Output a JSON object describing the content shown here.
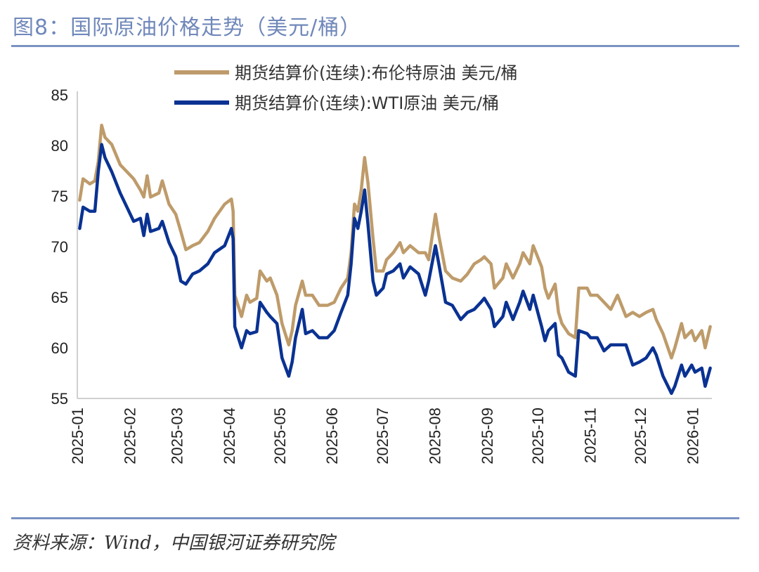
{
  "title": "图8：国际原油价格走势（美元/桶）",
  "source": "资料来源：Wind，中国银河证券研究院",
  "chart_data": {
    "type": "line",
    "title": "",
    "xlabel": "",
    "ylabel": "",
    "ylim": [
      55,
      85
    ],
    "yticks": [
      "55",
      "60",
      "65",
      "70",
      "75",
      "80",
      "85"
    ],
    "xticks": [
      "2025-01",
      "2025-02",
      "2025-03",
      "2025-04",
      "2025-05",
      "2025-06",
      "2025-07",
      "2025-08",
      "2025-09",
      "2025-10",
      "2025-11",
      "2025-12",
      "2026-01"
    ],
    "xlim": [
      "2025-01-01",
      "2026-01-12"
    ],
    "grid": false,
    "legend_placement": "top-center",
    "dates": [
      "2025-01-02",
      "2025-01-04",
      "2025-01-08",
      "2025-01-11",
      "2025-01-13",
      "2025-01-15",
      "2025-01-17",
      "2025-01-21",
      "2025-01-26",
      "2025-01-30",
      "2025-02-03",
      "2025-02-07",
      "2025-02-09",
      "2025-02-11",
      "2025-02-13",
      "2025-02-18",
      "2025-02-20",
      "2025-02-24",
      "2025-02-28",
      "2025-03-03",
      "2025-03-06",
      "2025-03-10",
      "2025-03-14",
      "2025-03-19",
      "2025-03-23",
      "2025-03-29",
      "2025-04-02",
      "2025-04-03",
      "2025-04-04",
      "2025-04-08",
      "2025-04-11",
      "2025-04-13",
      "2025-04-17",
      "2025-04-19",
      "2025-04-23",
      "2025-04-25",
      "2025-04-29",
      "2025-05-02",
      "2025-05-06",
      "2025-05-08",
      "2025-05-10",
      "2025-05-14",
      "2025-05-16",
      "2025-05-20",
      "2025-05-24",
      "2025-05-29",
      "2025-06-02",
      "2025-06-06",
      "2025-06-10",
      "2025-06-12",
      "2025-06-14",
      "2025-06-16",
      "2025-06-18",
      "2025-06-20",
      "2025-06-22",
      "2025-06-25",
      "2025-06-27",
      "2025-07-01",
      "2025-07-03",
      "2025-07-07",
      "2025-07-11",
      "2025-07-13",
      "2025-07-17",
      "2025-07-22",
      "2025-07-26",
      "2025-07-28",
      "2025-08-01",
      "2025-08-03",
      "2025-08-07",
      "2025-08-11",
      "2025-08-16",
      "2025-08-20",
      "2025-08-24",
      "2025-08-28",
      "2025-08-30",
      "2025-09-03",
      "2025-09-05",
      "2025-09-10",
      "2025-09-12",
      "2025-09-16",
      "2025-09-20",
      "2025-09-22",
      "2025-09-26",
      "2025-09-28",
      "2025-10-03",
      "2025-10-05",
      "2025-10-07",
      "2025-10-11",
      "2025-10-13",
      "2025-10-15",
      "2025-10-19",
      "2025-10-23",
      "2025-10-25",
      "2025-10-30",
      "2025-11-01",
      "2025-11-05",
      "2025-11-09",
      "2025-11-13",
      "2025-11-17",
      "2025-11-22",
      "2025-11-26",
      "2025-11-30",
      "2025-12-04",
      "2025-12-08",
      "2025-12-10",
      "2025-12-14",
      "2025-12-19",
      "2025-12-21",
      "2025-12-25",
      "2025-12-27",
      "2025-12-31",
      "2026-01-02",
      "2026-01-06",
      "2026-01-08",
      "2026-01-11"
    ],
    "series": [
      {
        "name": "期货结算价(连续):布伦特原油 美元/桶",
        "color": "#BE9B6A",
        "values": [
          74.6,
          76.7,
          76.2,
          76.5,
          78.4,
          82.0,
          80.8,
          80.1,
          78.1,
          77.4,
          76.7,
          75.6,
          74.9,
          77.0,
          74.9,
          75.3,
          76.5,
          74.2,
          73.2,
          71.5,
          69.7,
          70.1,
          70.4,
          71.5,
          72.8,
          74.2,
          74.7,
          73.5,
          65.2,
          63.1,
          65.2,
          64.5,
          64.9,
          67.6,
          66.6,
          66.9,
          65.2,
          62.4,
          60.3,
          61.7,
          64.2,
          66.6,
          65.2,
          65.2,
          64.2,
          64.2,
          64.5,
          65.9,
          66.9,
          69.4,
          74.2,
          73.5,
          75.6,
          78.8,
          76.3,
          70.8,
          67.6,
          67.6,
          68.7,
          69.4,
          70.4,
          69.4,
          70.1,
          69.4,
          69.4,
          68.7,
          73.2,
          71.1,
          67.6,
          66.9,
          66.6,
          67.3,
          68.3,
          68.7,
          69.0,
          68.3,
          65.9,
          66.9,
          68.3,
          66.9,
          68.3,
          69.4,
          68.3,
          70.1,
          68.0,
          65.9,
          64.9,
          66.3,
          63.5,
          62.4,
          61.4,
          61.0,
          65.9,
          65.9,
          65.2,
          65.2,
          64.5,
          63.8,
          65.2,
          63.1,
          63.5,
          63.1,
          63.5,
          63.8,
          62.8,
          61.4,
          59.0,
          60.0,
          62.4,
          61.0,
          61.7,
          60.7,
          61.7,
          60.0,
          62.1
        ]
      },
      {
        "name": "期货结算价(连续):WTI原油 美元/桶",
        "color": "#0A3292",
        "values": [
          71.8,
          73.9,
          73.5,
          73.5,
          77.4,
          80.1,
          78.8,
          77.4,
          75.3,
          73.9,
          72.5,
          72.8,
          71.1,
          73.2,
          71.5,
          71.8,
          72.5,
          70.4,
          69.0,
          66.6,
          66.3,
          67.3,
          67.6,
          68.3,
          69.4,
          70.1,
          71.8,
          70.8,
          62.1,
          60.0,
          61.7,
          61.4,
          61.6,
          64.5,
          63.5,
          63.1,
          62.4,
          59.0,
          57.2,
          58.6,
          61.0,
          63.8,
          61.4,
          61.7,
          61.0,
          61.0,
          61.7,
          63.5,
          65.2,
          68.3,
          72.8,
          71.8,
          73.5,
          75.6,
          72.2,
          66.6,
          65.2,
          65.9,
          67.3,
          67.6,
          68.3,
          66.9,
          68.0,
          67.3,
          65.2,
          66.6,
          70.1,
          68.3,
          64.5,
          64.2,
          62.8,
          63.5,
          63.8,
          64.5,
          64.9,
          63.8,
          62.1,
          63.1,
          64.5,
          62.8,
          64.5,
          65.6,
          63.8,
          65.2,
          62.1,
          60.7,
          61.7,
          62.4,
          59.3,
          59.0,
          57.6,
          57.2,
          61.7,
          61.4,
          61.0,
          61.0,
          59.7,
          60.3,
          60.3,
          60.3,
          58.3,
          58.6,
          59.0,
          60.0,
          59.3,
          57.2,
          55.5,
          56.2,
          58.3,
          57.2,
          58.3,
          57.6,
          58.0,
          56.2,
          58.0
        ]
      }
    ]
  }
}
